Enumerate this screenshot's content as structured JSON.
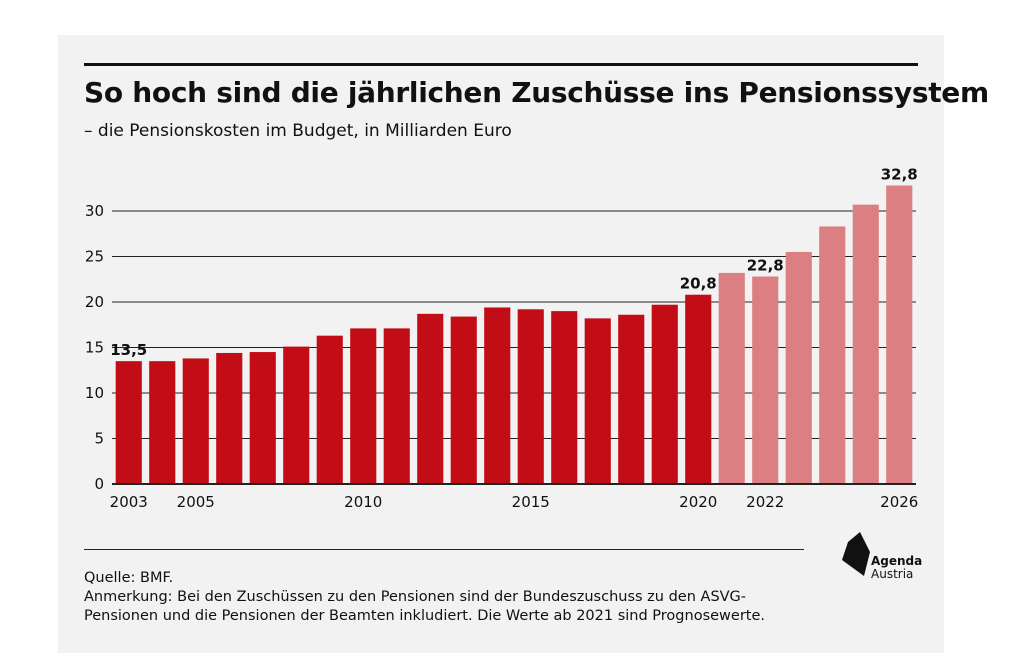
{
  "header": {
    "title": "So hoch sind die jährlichen Zuschüsse ins Pensionssystem",
    "subtitle": "– die Pensionskosten im Budget, in Milliarden Euro"
  },
  "footer": {
    "source": "Quelle: BMF.",
    "note_line1": "Anmerkung: Bei den Zuschüssen zu den Pensionen sind der Bundeszuschuss zu den ASVG-",
    "note_line2": "Pensionen und die Pensionen der Beamten inkludiert. Die Werte ab 2021 sind Prognosewerte."
  },
  "logo": {
    "line1": "Agenda",
    "line2": "Austria"
  },
  "colors": {
    "actual": "#c30d16",
    "forecast": "#db7f83",
    "grid": "#222222",
    "background": "#f2f2f2"
  },
  "chart_data": {
    "type": "bar",
    "categories": [
      "2003",
      "2004",
      "2005",
      "2006",
      "2007",
      "2008",
      "2009",
      "2010",
      "2011",
      "2012",
      "2013",
      "2014",
      "2015",
      "2016",
      "2017",
      "2018",
      "2019",
      "2020",
      "2021",
      "2022",
      "2023",
      "2024",
      "2025",
      "2026"
    ],
    "series": [
      {
        "values": [
          13.5,
          13.5,
          13.8,
          14.4,
          14.5,
          15.1,
          16.3,
          17.1,
          17.1,
          18.7,
          18.4,
          19.4,
          19.2,
          19.0,
          18.2,
          18.6,
          19.7,
          20.8,
          23.2,
          22.8,
          25.5,
          28.3,
          30.7,
          32.8
        ]
      }
    ],
    "forecast_from": "2021",
    "xtick_labels": [
      "2003",
      "2005",
      "2010",
      "2015",
      "2020",
      "2022",
      "2026"
    ],
    "yticks": [
      0,
      5,
      10,
      15,
      20,
      25,
      30
    ],
    "data_labels": [
      {
        "category": "2003",
        "text": "13,5"
      },
      {
        "category": "2020",
        "text": "20,8"
      },
      {
        "category": "2022",
        "text": "22,8"
      },
      {
        "category": "2026",
        "text": "32,8"
      }
    ],
    "ylim": [
      0,
      34
    ],
    "grid": true,
    "xlabel": "",
    "ylabel": ""
  }
}
